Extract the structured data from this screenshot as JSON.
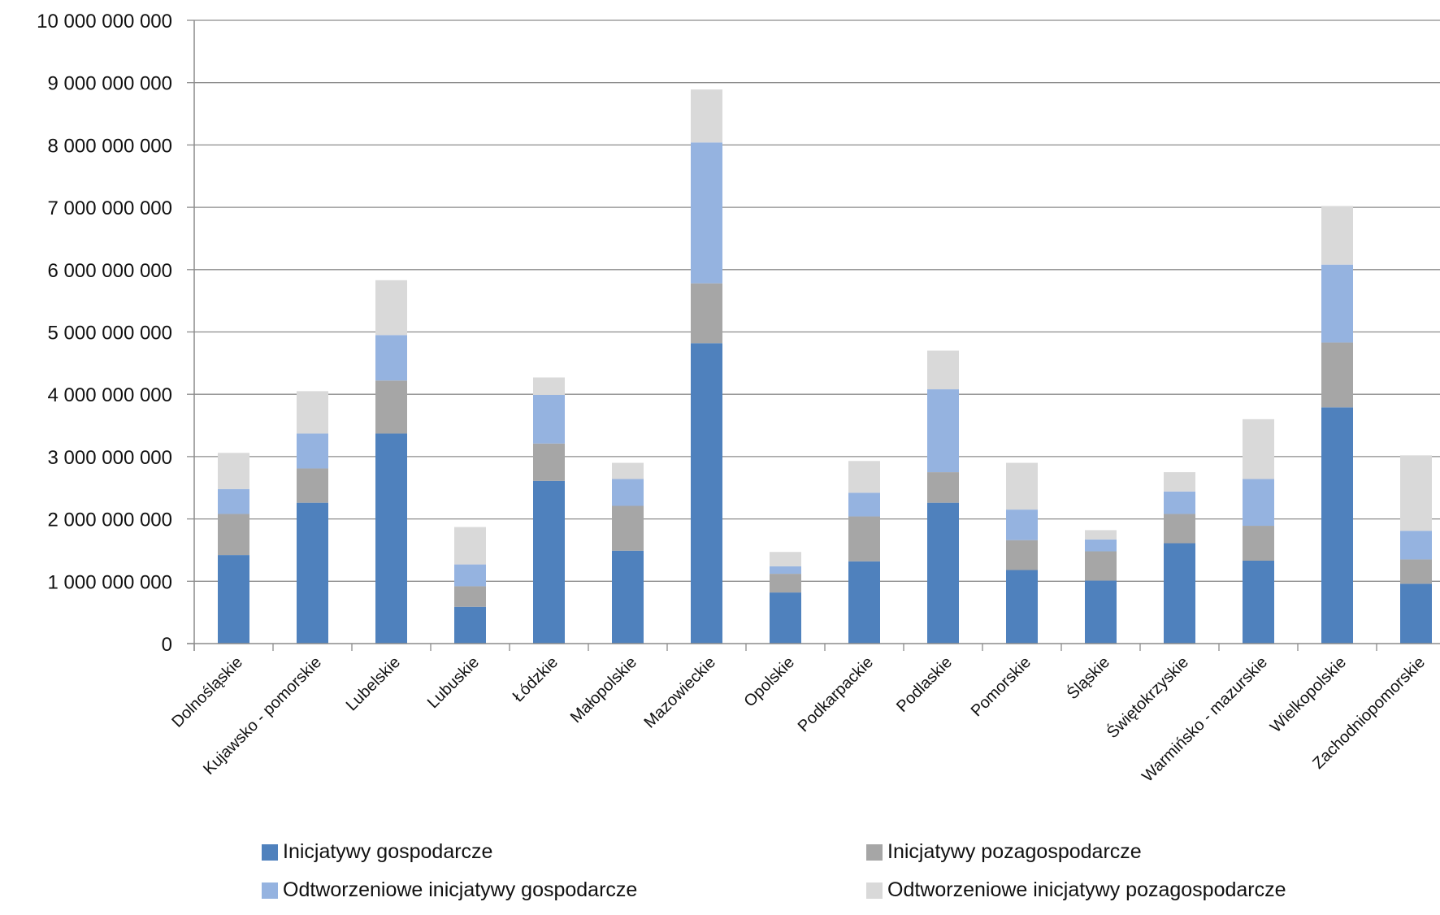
{
  "chart_data": {
    "type": "bar",
    "stacked": true,
    "categories": [
      "Dolnośląskie",
      "Kujawsko - pomorskie",
      "Lubelskie",
      "Lubuskie",
      "Łódzkie",
      "Małopolskie",
      "Mazowieckie",
      "Opolskie",
      "Podkarpackie",
      "Podlaskie",
      "Pomorskie",
      "Śląskie",
      "Świętokrzyskie",
      "Warmińsko - mazurskie",
      "Wielkopolskie",
      "Zachodniopomorskie"
    ],
    "series": [
      {
        "name": "Inicjatywy gospodarcze",
        "color": "#4f81bd",
        "values": [
          1420000000,
          2260000000,
          3370000000,
          590000000,
          2610000000,
          1490000000,
          4820000000,
          820000000,
          1320000000,
          2260000000,
          1180000000,
          1010000000,
          1610000000,
          1330000000,
          3790000000,
          960000000
        ]
      },
      {
        "name": "Inicjatywy pozagospodarcze",
        "color": "#a6a6a6",
        "values": [
          660000000,
          550000000,
          850000000,
          330000000,
          600000000,
          720000000,
          960000000,
          300000000,
          720000000,
          490000000,
          480000000,
          470000000,
          470000000,
          560000000,
          1040000000,
          390000000
        ]
      },
      {
        "name": "Odtworzeniowe inicjatywy gospodarcze",
        "color": "#95b3e0",
        "values": [
          400000000,
          560000000,
          730000000,
          350000000,
          780000000,
          430000000,
          2260000000,
          120000000,
          380000000,
          1330000000,
          490000000,
          190000000,
          360000000,
          750000000,
          1250000000,
          460000000
        ]
      },
      {
        "name": "Odtworzeniowe inicjatywy pozagospodarcze",
        "color": "#d9d9d9",
        "values": [
          580000000,
          680000000,
          880000000,
          600000000,
          280000000,
          260000000,
          850000000,
          230000000,
          510000000,
          620000000,
          750000000,
          150000000,
          310000000,
          960000000,
          940000000,
          1210000000
        ]
      }
    ],
    "ylim": [
      0,
      10000000000
    ],
    "yticks": [
      0,
      1000000000,
      2000000000,
      3000000000,
      4000000000,
      5000000000,
      6000000000,
      7000000000,
      8000000000,
      9000000000,
      10000000000
    ],
    "ytick_labels": [
      "0",
      "1 000 000 000",
      "2 000 000 000",
      "3 000 000 000",
      "4 000 000 000",
      "5 000 000 000",
      "6 000 000 000",
      "7 000 000 000",
      "8 000 000 000",
      "9 000 000 000",
      "10 000 000 000"
    ],
    "grid": true,
    "legend_position": "bottom"
  }
}
